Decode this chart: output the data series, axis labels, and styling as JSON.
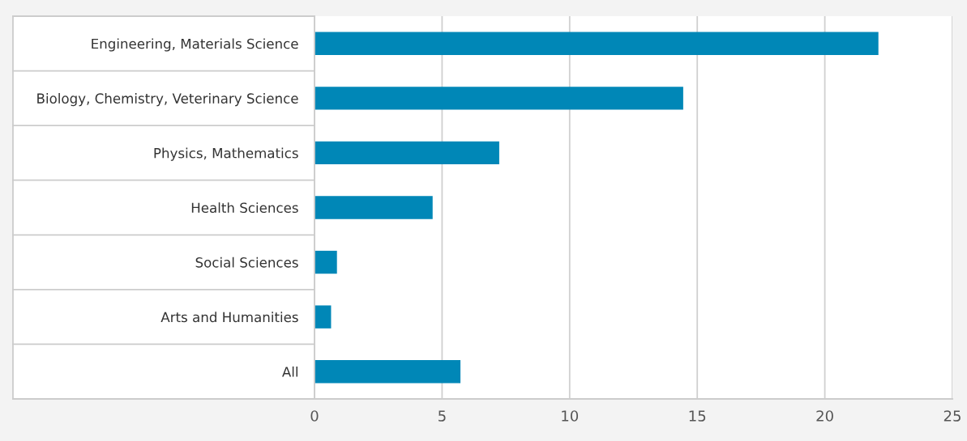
{
  "chart_data": {
    "type": "bar",
    "orientation": "horizontal",
    "categories": [
      "Engineering, Materials Science",
      "Biology, Chemistry, Veterinary Science",
      "Physics, Mathematics",
      "Health Sciences",
      "Social Sciences",
      "Arts and Humanities",
      "All"
    ],
    "values": [
      22.1,
      14.45,
      7.24,
      4.63,
      0.88,
      0.65,
      5.72
    ],
    "color": "#0087b7",
    "xlim": [
      0,
      25
    ],
    "xticks": [
      0,
      5,
      10,
      15,
      20,
      25
    ],
    "grid": "x",
    "legend": false
  }
}
